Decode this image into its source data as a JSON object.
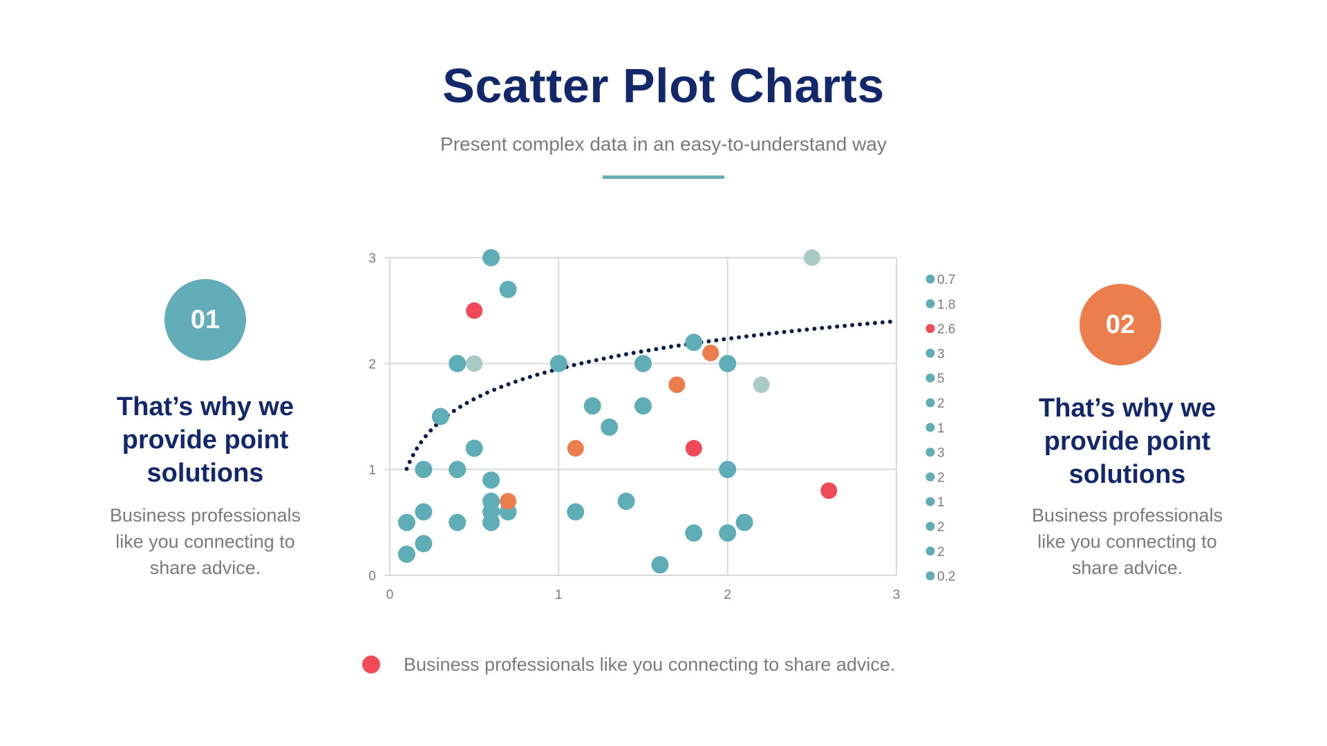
{
  "header": {
    "title": "Scatter Plot Charts",
    "subtitle": "Present complex data in an easy-to-understand way"
  },
  "panels": [
    {
      "badge": "01",
      "badge_color": "#62adb7",
      "heading_lines": [
        "That’s why we",
        "provide point",
        "solutions"
      ],
      "body_lines": [
        "Business professionals",
        "like you connecting to",
        "share advice."
      ]
    },
    {
      "badge": "02",
      "badge_color": "#ec7d4c",
      "heading_lines": [
        "That’s why we",
        "provide point",
        "solutions"
      ],
      "body_lines": [
        "Business professionals",
        "like you connecting to",
        "share advice."
      ]
    }
  ],
  "caption": {
    "text": "Business professionals like you connecting to share advice.",
    "dot_color": "#f04a58"
  },
  "colors": {
    "navy": "#12286a",
    "teal": "#5fadb6",
    "sage": "#a9cbc3",
    "orange": "#ec7d4c",
    "red": "#f04a58",
    "grid": "#d9d9d9",
    "text_gray": "#7a7a7a",
    "trendline": "#0d1b4a"
  },
  "chart_data": {
    "type": "scatter",
    "title": "",
    "xlabel": "",
    "ylabel": "",
    "xlim": [
      0,
      3
    ],
    "ylim": [
      0,
      3
    ],
    "x_ticks": [
      "0",
      "1",
      "2",
      "3"
    ],
    "y_ticks": [
      "0",
      "1",
      "2",
      "3"
    ],
    "grid": true,
    "legend_position": "right",
    "legend": [
      {
        "label": "0.7",
        "color": "teal"
      },
      {
        "label": "1.8",
        "color": "teal"
      },
      {
        "label": "2.6",
        "color": "red"
      },
      {
        "label": "3",
        "color": "teal"
      },
      {
        "label": "5",
        "color": "teal"
      },
      {
        "label": "2",
        "color": "teal"
      },
      {
        "label": "1",
        "color": "teal"
      },
      {
        "label": "3",
        "color": "teal"
      },
      {
        "label": "2",
        "color": "teal"
      },
      {
        "label": "1",
        "color": "teal"
      },
      {
        "label": "2",
        "color": "teal"
      },
      {
        "label": "2",
        "color": "teal"
      },
      {
        "label": "0.2",
        "color": "teal"
      }
    ],
    "points": [
      {
        "x": 0.6,
        "y": 3.0,
        "color": "teal"
      },
      {
        "x": 0.7,
        "y": 2.7,
        "color": "teal"
      },
      {
        "x": 0.5,
        "y": 2.5,
        "color": "red"
      },
      {
        "x": 0.4,
        "y": 2.0,
        "color": "teal"
      },
      {
        "x": 0.5,
        "y": 2.0,
        "color": "sage"
      },
      {
        "x": 1.0,
        "y": 2.0,
        "color": "teal"
      },
      {
        "x": 1.5,
        "y": 2.0,
        "color": "teal"
      },
      {
        "x": 1.8,
        "y": 2.2,
        "color": "teal"
      },
      {
        "x": 1.9,
        "y": 2.1,
        "color": "orange"
      },
      {
        "x": 2.0,
        "y": 2.0,
        "color": "teal"
      },
      {
        "x": 2.5,
        "y": 3.0,
        "color": "sage"
      },
      {
        "x": 2.2,
        "y": 1.8,
        "color": "sage"
      },
      {
        "x": 1.7,
        "y": 1.8,
        "color": "orange"
      },
      {
        "x": 0.3,
        "y": 1.5,
        "color": "teal"
      },
      {
        "x": 1.2,
        "y": 1.6,
        "color": "teal"
      },
      {
        "x": 1.5,
        "y": 1.6,
        "color": "teal"
      },
      {
        "x": 1.3,
        "y": 1.4,
        "color": "teal"
      },
      {
        "x": 0.5,
        "y": 1.2,
        "color": "teal"
      },
      {
        "x": 1.1,
        "y": 1.2,
        "color": "orange"
      },
      {
        "x": 1.8,
        "y": 1.2,
        "color": "red"
      },
      {
        "x": 0.2,
        "y": 1.0,
        "color": "teal"
      },
      {
        "x": 0.4,
        "y": 1.0,
        "color": "teal"
      },
      {
        "x": 2.0,
        "y": 1.0,
        "color": "teal"
      },
      {
        "x": 0.6,
        "y": 0.9,
        "color": "teal"
      },
      {
        "x": 0.6,
        "y": 0.7,
        "color": "teal"
      },
      {
        "x": 0.6,
        "y": 0.6,
        "color": "teal"
      },
      {
        "x": 0.6,
        "y": 0.5,
        "color": "teal"
      },
      {
        "x": 0.7,
        "y": 0.6,
        "color": "teal"
      },
      {
        "x": 0.7,
        "y": 0.7,
        "color": "orange"
      },
      {
        "x": 1.1,
        "y": 0.6,
        "color": "teal"
      },
      {
        "x": 1.4,
        "y": 0.7,
        "color": "teal"
      },
      {
        "x": 2.6,
        "y": 0.8,
        "color": "red"
      },
      {
        "x": 0.1,
        "y": 0.5,
        "color": "teal"
      },
      {
        "x": 0.2,
        "y": 0.6,
        "color": "teal"
      },
      {
        "x": 0.4,
        "y": 0.5,
        "color": "teal"
      },
      {
        "x": 0.2,
        "y": 0.3,
        "color": "teal"
      },
      {
        "x": 0.1,
        "y": 0.2,
        "color": "teal"
      },
      {
        "x": 1.8,
        "y": 0.4,
        "color": "teal"
      },
      {
        "x": 2.0,
        "y": 0.4,
        "color": "teal"
      },
      {
        "x": 2.1,
        "y": 0.5,
        "color": "teal"
      },
      {
        "x": 1.6,
        "y": 0.1,
        "color": "teal"
      }
    ],
    "trendline": {
      "type": "logarithmic",
      "style": "dotted",
      "equation": "y = 1.95 + 0.41 ln(x)",
      "x_start": 0.1,
      "x_end": 2.97
    }
  }
}
